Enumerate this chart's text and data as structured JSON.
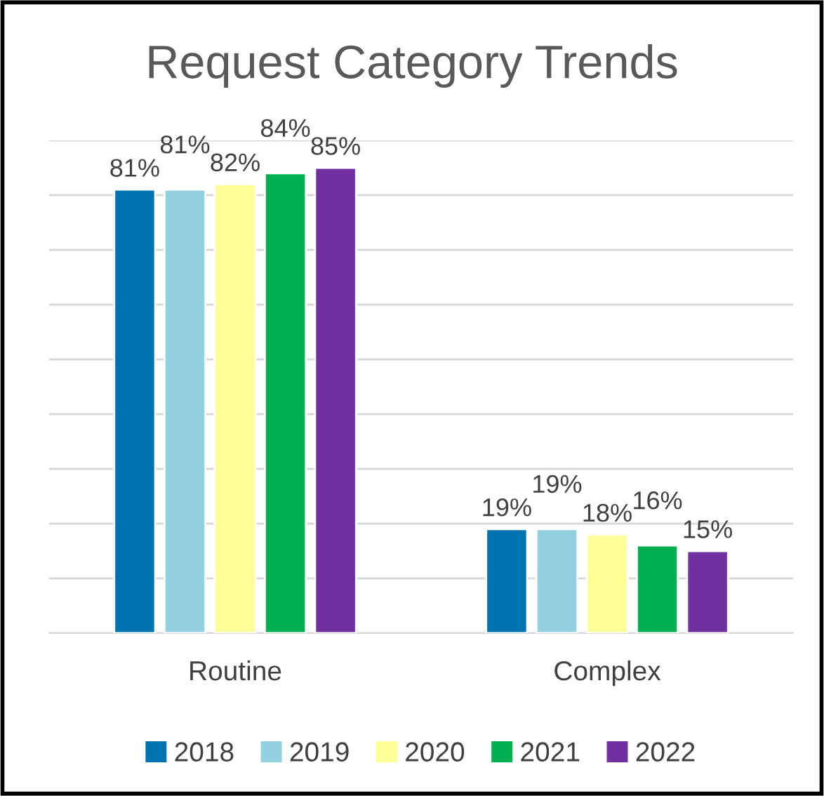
{
  "chart_data": {
    "type": "bar",
    "title": "Request Category Trends",
    "categories": [
      "Routine",
      "Complex"
    ],
    "series": [
      {
        "name": "2018",
        "color": "#0073b0",
        "values": [
          81,
          19
        ],
        "value_labels": [
          "81%",
          "19%"
        ]
      },
      {
        "name": "2019",
        "color": "#92d0e2",
        "values": [
          81,
          19
        ],
        "value_labels": [
          "81%",
          "19%"
        ]
      },
      {
        "name": "2020",
        "color": "#ffff99",
        "values": [
          82,
          18
        ],
        "value_labels": [
          "82%",
          "18%"
        ]
      },
      {
        "name": "2021",
        "color": "#00b050",
        "values": [
          84,
          16
        ],
        "value_labels": [
          "84%",
          "16%"
        ]
      },
      {
        "name": "2022",
        "color": "#7030a0",
        "values": [
          85,
          15
        ],
        "value_labels": [
          "85%",
          "15%"
        ]
      }
    ],
    "ylim": [
      0,
      90
    ],
    "yticks": [
      {
        "value": 0,
        "label": null
      },
      {
        "value": 10,
        "label": null
      },
      {
        "value": 20,
        "label": null
      },
      {
        "value": 30,
        "label": null
      },
      {
        "value": 40,
        "label": null
      },
      {
        "value": 50,
        "label": null
      },
      {
        "value": 60,
        "label": null
      },
      {
        "value": 70,
        "label": null
      },
      {
        "value": 80,
        "label": null
      },
      {
        "value": 90,
        "label": null
      }
    ],
    "tick_labels": "x",
    "grid": "y",
    "legend": "bottom"
  }
}
